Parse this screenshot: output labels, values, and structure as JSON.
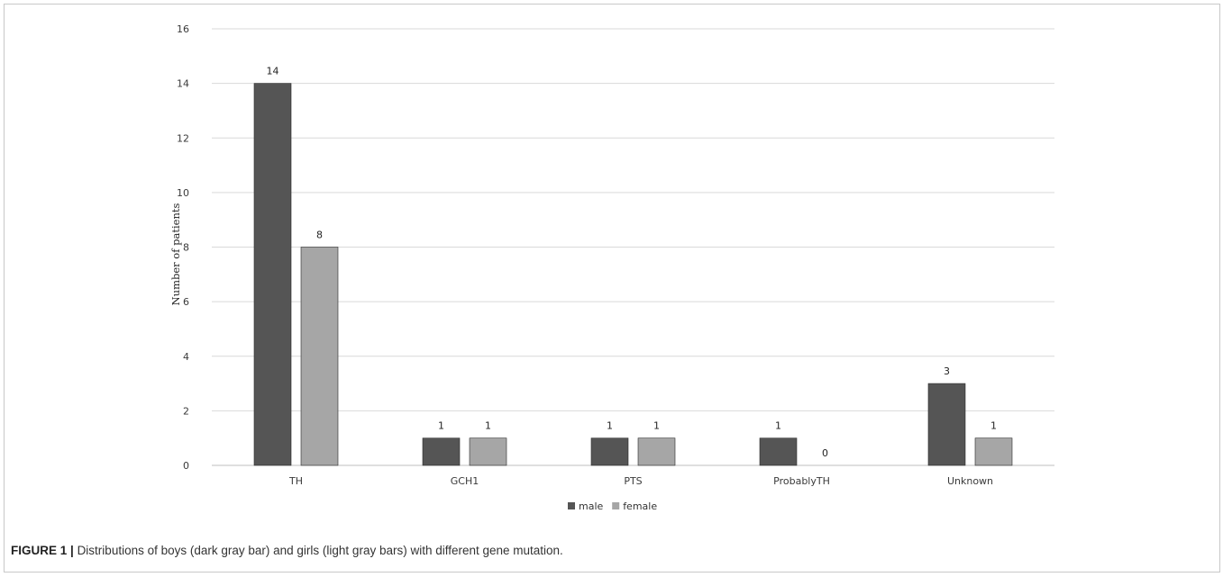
{
  "chart_data": {
    "type": "bar",
    "categories": [
      "TH",
      "GCH1",
      "PTS",
      "ProbablyTH",
      "Unknown"
    ],
    "series": [
      {
        "name": "male",
        "values": [
          14,
          1,
          1,
          1,
          3
        ],
        "color": "#555555"
      },
      {
        "name": "female",
        "values": [
          8,
          1,
          1,
          0,
          1
        ],
        "color": "#a6a6a6"
      }
    ],
    "title": "",
    "xlabel": "",
    "ylabel": "Number of patients",
    "ylim": [
      0,
      16
    ],
    "yticks": [
      0,
      2,
      4,
      6,
      8,
      10,
      12,
      14,
      16
    ],
    "grid": true,
    "legend_position": "bottom-center",
    "data_labels": true
  },
  "caption": {
    "label": "FIGURE 1 |",
    "text": "Distributions of boys (dark gray bar) and girls (light gray bars) with different gene mutation."
  }
}
